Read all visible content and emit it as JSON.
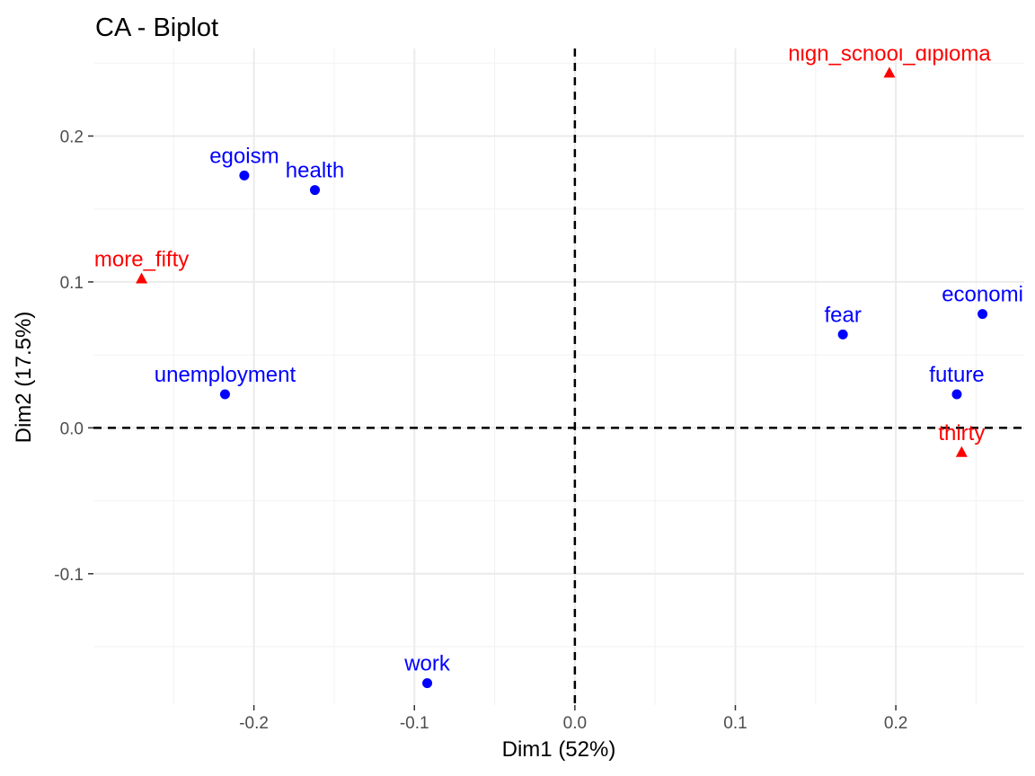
{
  "chart_data": {
    "type": "scatter",
    "title": "CA - Biplot",
    "xlabel": "Dim1 (52%)",
    "ylabel": "Dim2 (17.5%)",
    "xlim": [
      -0.3,
      0.28
    ],
    "ylim": [
      -0.19,
      0.26
    ],
    "x_ticks": [
      -0.2,
      -0.1,
      0.0,
      0.1,
      0.2
    ],
    "x_tick_labels": [
      "-0.2",
      "-0.1",
      "0.0",
      "0.1",
      "0.2"
    ],
    "y_ticks": [
      -0.1,
      0.0,
      0.1,
      0.2
    ],
    "y_tick_labels": [
      "-0.1",
      "0.0",
      "0.1",
      "0.2"
    ],
    "grid": true,
    "reference_lines": {
      "x": 0,
      "y": 0,
      "style": "dashed"
    },
    "series": [
      {
        "color": "#0000ff",
        "marker": "circle",
        "points": [
          {
            "label": "egoism",
            "x": -0.206,
            "y": 0.173
          },
          {
            "label": "health",
            "x": -0.162,
            "y": 0.163
          },
          {
            "label": "unemployment",
            "x": -0.218,
            "y": 0.023
          },
          {
            "label": "work",
            "x": -0.092,
            "y": -0.175
          },
          {
            "label": "fear",
            "x": 0.167,
            "y": 0.064
          },
          {
            "label": "economi",
            "x": 0.254,
            "y": 0.078
          },
          {
            "label": "future",
            "x": 0.238,
            "y": 0.023
          }
        ]
      },
      {
        "color": "#ff0000",
        "marker": "triangle",
        "points": [
          {
            "label": "high_school_diploma",
            "x": 0.196,
            "y": 0.243
          },
          {
            "label": "more_fifty",
            "x": -0.27,
            "y": 0.102
          },
          {
            "label": "thirty",
            "x": 0.241,
            "y": -0.017
          }
        ]
      }
    ]
  }
}
